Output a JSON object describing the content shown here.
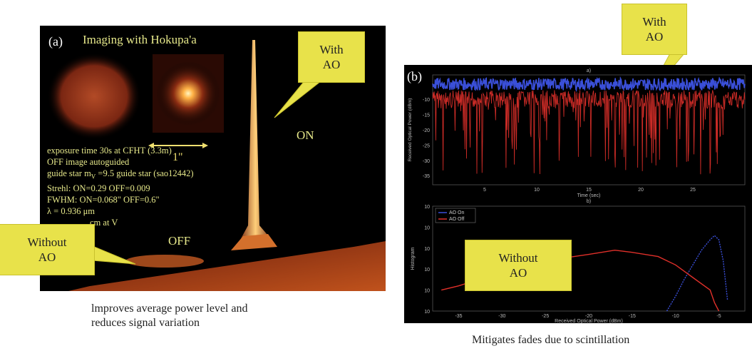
{
  "panel_a": {
    "label": "(a)",
    "title": "Imaging with Hokupa'a",
    "scale_label": "1\"",
    "on_label": "ON",
    "off_label": "OFF",
    "info_lines": [
      "exposure time 30s at  CFHT (3.3m)",
      "OFF image autoguided",
      "guide star m",
      "Strehl: ON=0.29 OFF=0.009",
      "FWHM: ON=0.068\" OFF=0.6\"",
      "λ = 0.936 μm",
      "cm at V"
    ],
    "guide_sub": "V",
    "guide_rest": " =9.5 guide star (sao12442)",
    "caption_line1": "lmproves average power level and",
    "caption_line2": "reduces signal variation"
  },
  "panel_b": {
    "label": "(b)",
    "caption": "Mitigates fades due to scintillation"
  },
  "callouts": {
    "with_ao_a_line1": "With",
    "with_ao_a_line2": "AO",
    "without_ao_a_line1": "Without",
    "without_ao_a_line2": "AO",
    "with_ao_b_line1": "With",
    "with_ao_b_line2": "AO",
    "without_ao_b_line1": "Without",
    "without_ao_b_line2": "AO"
  },
  "colors": {
    "callout": "#e8e24a",
    "ao_on": "#3a4fd8",
    "ao_off": "#e0302a",
    "panel_bg": "#000000",
    "info_text": "#e6e88a"
  },
  "chart_data": [
    {
      "type": "line",
      "title": "a)",
      "xlabel": "Time (sec)",
      "ylabel": "Received Optical Power (dBm)",
      "xlim": [
        0,
        30
      ],
      "ylim": [
        -38,
        -2
      ],
      "x_ticks": [
        "5",
        "10",
        "15",
        "20",
        "25"
      ],
      "y_ticks": [
        "-10",
        "-15",
        "-20",
        "-25",
        "-30",
        "-35"
      ],
      "series": [
        {
          "color": "#3a4fd8",
          "mean": -5,
          "min": -7,
          "max": -3
        },
        {
          "color": "#e0302a",
          "mean": -12,
          "min": -35,
          "max": -7
        }
      ]
    },
    {
      "type": "line",
      "title": "b)",
      "xlabel": "Received Optical Power (dBm)",
      "ylabel": "Histogram",
      "xlim": [
        -38,
        -2
      ],
      "ylim_log10": [
        0,
        5
      ],
      "x_ticks": [
        "-35",
        "-30",
        "-25",
        "-20",
        "-15",
        "-10",
        "-5"
      ],
      "y_ticks": [
        "10",
        "10",
        "10",
        "10",
        "10",
        "10"
      ],
      "series": [
        {
          "name": "AO On",
          "color": "#3a4fd8",
          "x": [
            -11,
            -10,
            -9,
            -8,
            -7,
            -6,
            -5.5,
            -5,
            -4.5,
            -4
          ],
          "y_log10": [
            0,
            0.7,
            1.5,
            2.2,
            2.9,
            3.4,
            3.6,
            3.4,
            2.4,
            0.5
          ]
        },
        {
          "name": "AO Off",
          "color": "#e0302a",
          "x": [
            -37,
            -35,
            -32,
            -28,
            -25,
            -20,
            -17,
            -15,
            -12,
            -10,
            -8,
            -6,
            -5.5,
            -5
          ],
          "y_log10": [
            1.0,
            1.2,
            1.6,
            2.0,
            2.4,
            2.7,
            2.9,
            2.8,
            2.6,
            2.2,
            1.6,
            1.0,
            0.4,
            0.0
          ]
        }
      ]
    }
  ]
}
